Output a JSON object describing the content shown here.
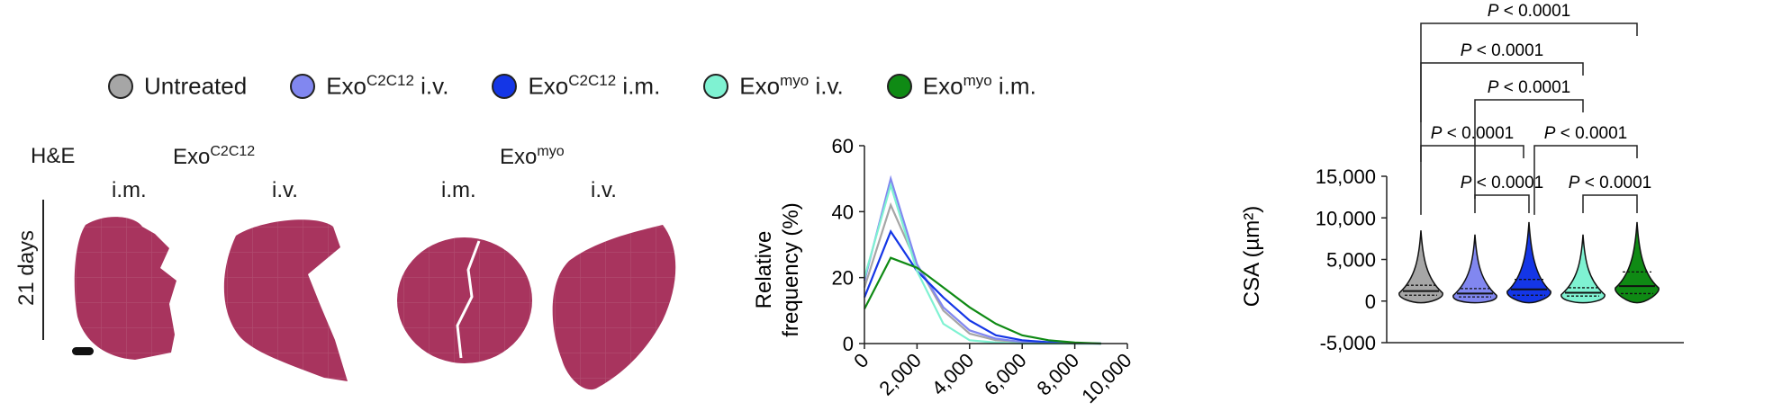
{
  "legend": [
    {
      "base": "Untreated",
      "sup": "",
      "suffix": "",
      "color": "#a6a6a6"
    },
    {
      "base": "Exo",
      "sup": "C2C12",
      "suffix": " i.v.",
      "color": "#8187f0"
    },
    {
      "base": "Exo",
      "sup": "C2C12",
      "suffix": " i.m.",
      "color": "#1436e6"
    },
    {
      "base": "Exo",
      "sup": "myo",
      "suffix": " i.v.",
      "color": "#7ff2d2"
    },
    {
      "base": "Exo",
      "sup": "myo",
      "suffix": " i.m.",
      "color": "#0f8a14"
    }
  ],
  "histology": {
    "stain": "H&E",
    "time": "21 days",
    "group1": {
      "base": "Exo",
      "sup": "C2C12"
    },
    "group2": {
      "base": "Exo",
      "sup": "myo"
    },
    "im_label": "i.m.",
    "iv_label": "i.v.",
    "tissue_color": "#a8345e"
  },
  "chart_data": [
    {
      "type": "line",
      "ylabel_line1": "Relative",
      "ylabel_line2": "frequency (%)",
      "xlabel": "",
      "ylim": [
        0,
        60
      ],
      "xlim": [
        0,
        10000
      ],
      "yticks": [
        0,
        20,
        40,
        60
      ],
      "yticks_labels": [
        "0",
        "20",
        "40",
        "60"
      ],
      "xticks": [
        0,
        2000,
        4000,
        6000,
        8000,
        10000
      ],
      "xticks_labels": [
        "0",
        "2,000",
        "4,000",
        "6,000",
        "8,000",
        "10,000"
      ],
      "x": [
        0,
        1000,
        2000,
        3000,
        4000,
        5000,
        6000,
        7000,
        8000,
        9000
      ],
      "series": [
        {
          "color": "#a6a6a6",
          "values": [
            17,
            42,
            24,
            10,
            3,
            1,
            0.5,
            0.2,
            0,
            0
          ]
        },
        {
          "color": "#8187f0",
          "values": [
            19,
            50,
            24,
            11,
            4,
            1.5,
            0.5,
            0.2,
            0,
            0
          ]
        },
        {
          "color": "#1436e6",
          "values": [
            14,
            34,
            22,
            14,
            7,
            2.5,
            1,
            0.4,
            0.1,
            0
          ]
        },
        {
          "color": "#7ff2d2",
          "values": [
            20,
            48,
            22,
            6,
            1,
            0.3,
            0,
            0,
            0,
            0
          ]
        },
        {
          "color": "#0f8a14",
          "values": [
            10.5,
            26,
            23,
            17,
            11,
            6,
            2.5,
            1,
            0.3,
            0
          ]
        }
      ]
    },
    {
      "type": "violin",
      "ylabel": "CSA (µm²)",
      "ylim": [
        -5000,
        15000
      ],
      "yticks": [
        -5000,
        0,
        5000,
        10000,
        15000
      ],
      "yticks_labels": [
        "-5,000",
        "0",
        "5,000",
        "10,000",
        "15,000"
      ],
      "groups": [
        {
          "color": "#a6a6a6",
          "max": 8500,
          "median": 1200,
          "q1": 700,
          "q3": 1900
        },
        {
          "color": "#8187f0",
          "max": 8000,
          "median": 900,
          "q1": 500,
          "q3": 1500
        },
        {
          "color": "#1436e6",
          "max": 9500,
          "median": 1400,
          "q1": 700,
          "q3": 2600
        },
        {
          "color": "#7ff2d2",
          "max": 8000,
          "median": 1000,
          "q1": 600,
          "q3": 1600
        },
        {
          "color": "#0f8a14",
          "max": 9500,
          "median": 1800,
          "q1": 900,
          "q3": 3500
        }
      ],
      "comparisons": [
        {
          "from": 0,
          "to": 4,
          "level": 5,
          "label": "P < 0.0001"
        },
        {
          "from": 0,
          "to": 3,
          "level": 4,
          "label": "P < 0.0001"
        },
        {
          "from": 1,
          "to": 3,
          "level": 3,
          "label": "P < 0.0001"
        },
        {
          "from": 0,
          "to": 2,
          "level": 2,
          "label": "P < 0.0001"
        },
        {
          "from": 2,
          "to": 4,
          "level": 2,
          "label": "P < 0.0001"
        },
        {
          "from": 1,
          "to": 2,
          "level": 1,
          "label": "P < 0.0001"
        },
        {
          "from": 3,
          "to": 4,
          "level": 1,
          "label": "P < 0.0001"
        }
      ]
    }
  ]
}
